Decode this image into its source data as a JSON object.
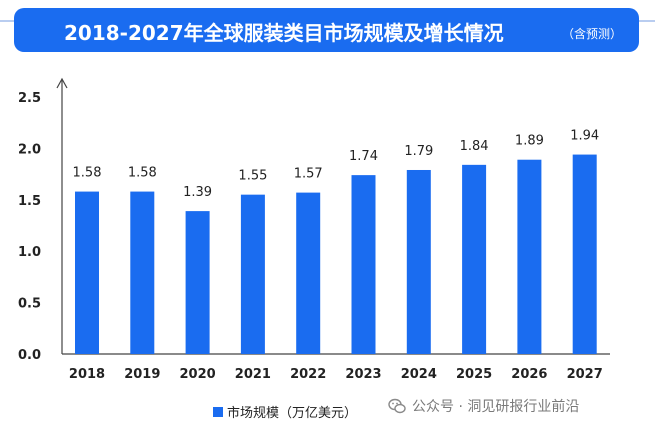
{
  "header": {
    "title": "2018-2027年全球服装类目市场规模及增长情况",
    "subtitle": "（含预测）"
  },
  "chart_data": {
    "type": "bar",
    "categories": [
      "2018",
      "2019",
      "2020",
      "2021",
      "2022",
      "2023",
      "2024",
      "2025",
      "2026",
      "2027"
    ],
    "series": [
      {
        "name": "市场规模（万亿美元）",
        "values": [
          1.58,
          1.58,
          1.39,
          1.55,
          1.57,
          1.74,
          1.79,
          1.84,
          1.89,
          1.94
        ]
      }
    ],
    "data_labels": [
      "1.58",
      "1.58",
      "1.39",
      "1.55",
      "1.57",
      "1.74",
      "1.79",
      "1.84",
      "1.89",
      "1.94"
    ],
    "yticks": [
      "0.0",
      "0.5",
      "1.0",
      "1.5",
      "2.0",
      "2.5"
    ],
    "ylim": [
      0,
      2.5
    ],
    "title": "2018-2027年全球服装类目市场规模及增长情况（含预测）",
    "xlabel": "",
    "ylabel": "",
    "grid": false,
    "legend_position": "bottom",
    "bar_color": "#1a6cf0"
  },
  "legend": {
    "label": "市场规模（万亿美元）"
  },
  "watermark": {
    "text": "公众号 · 洞见研报行业前沿"
  },
  "colors": {
    "accent": "#1a6cf0",
    "text": "#222222",
    "axis": "#444444"
  }
}
